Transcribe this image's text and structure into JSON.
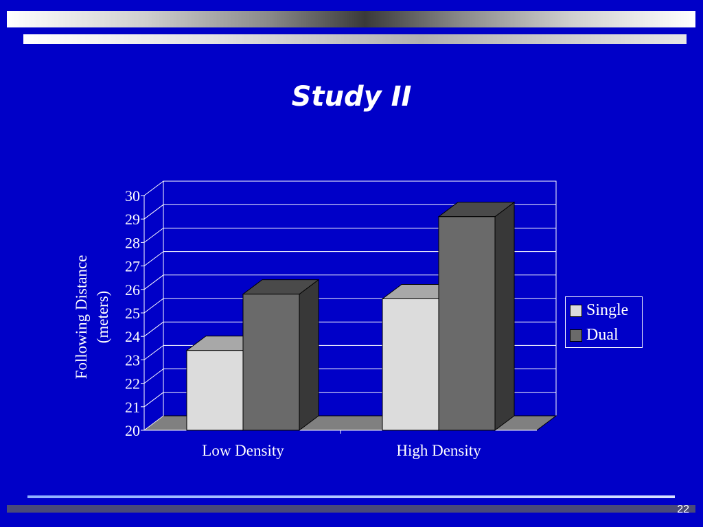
{
  "slide": {
    "title": "Study II",
    "page_number": "22"
  },
  "colors": {
    "background": "#0000c8",
    "single": "#dcdcdc",
    "dual": "#6a6a6a"
  },
  "chart_data": {
    "type": "bar",
    "categories": [
      "Low Density",
      "High Density"
    ],
    "series": [
      {
        "name": "Single",
        "values": [
          23.4,
          25.6
        ]
      },
      {
        "name": "Dual",
        "values": [
          25.8,
          29.1
        ]
      }
    ],
    "ylabel": "Following Distance (meters)",
    "ylabel_lines": [
      "Following Distance",
      "(meters)"
    ],
    "ylim": [
      20,
      30
    ],
    "yticks": [
      "20",
      "21",
      "22",
      "23",
      "24",
      "25",
      "26",
      "27",
      "28",
      "29",
      "30"
    ],
    "grid": true,
    "legend": "right"
  }
}
